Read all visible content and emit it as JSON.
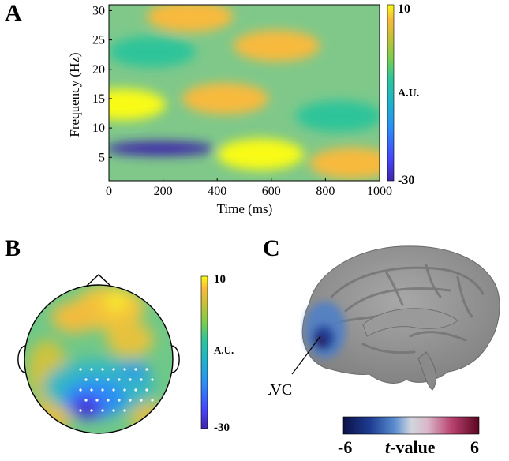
{
  "panels": {
    "a_label": "A",
    "b_label": "B",
    "c_label": "C"
  },
  "colors": {
    "colormap_parula": [
      "#3e26a8",
      "#4743f8",
      "#2c8ef5",
      "#1fb3c8",
      "#2fc49a",
      "#7fcc4e",
      "#c8bf3a",
      "#f8ba3d",
      "#f9fb15"
    ],
    "colormap_tvalue": [
      "#0b1148",
      "#1f3d93",
      "#5b8ed0",
      "#c8d3e4",
      "#d9b8c9",
      "#b9416e",
      "#5a0620"
    ],
    "brain_gray": "#8c8c8c"
  },
  "chart_data": [
    {
      "type": "heatmap",
      "panel": "A",
      "xlabel": "Time (ms)",
      "ylabel": "Frequency (Hz)",
      "xlim": [
        0,
        1000
      ],
      "ylim": [
        1,
        31
      ],
      "xticks": [
        0,
        200,
        400,
        600,
        800,
        1000
      ],
      "yticks": [
        5,
        10,
        15,
        20,
        25,
        30
      ],
      "colorbar": {
        "max_label": "10",
        "mid_label": "A.U.",
        "min_label": "-30",
        "range": [
          -30,
          10
        ]
      },
      "blobs": [
        {
          "time_ms": 190,
          "freq_hz": 6.5,
          "value": -30
        },
        {
          "time_ms": 560,
          "freq_hz": 5.5,
          "value": 10
        },
        {
          "time_ms": 50,
          "freq_hz": 14,
          "value": 8
        },
        {
          "time_ms": 160,
          "freq_hz": 23,
          "value": -10
        },
        {
          "time_ms": 300,
          "freq_hz": 29,
          "value": 7
        },
        {
          "time_ms": 850,
          "freq_hz": 12,
          "value": -8
        },
        {
          "time_ms": 620,
          "freq_hz": 24,
          "value": 5
        },
        {
          "time_ms": 900,
          "freq_hz": 4,
          "value": 6
        },
        {
          "time_ms": 430,
          "freq_hz": 15,
          "value": 4
        }
      ]
    },
    {
      "type": "heatmap",
      "panel": "B",
      "description_type": "scalp-topography",
      "colorbar": {
        "max_label": "10",
        "mid_label": "A.U.",
        "min_label": "-30",
        "range": [
          -30,
          10
        ]
      },
      "electrodes_marked": 33
    },
    {
      "type": "other",
      "panel": "C",
      "annotation": "LVC",
      "colorbar": {
        "min_label": "-6",
        "mid_label": "t-value",
        "max_label": "6",
        "range": [
          -6,
          6
        ]
      }
    }
  ]
}
